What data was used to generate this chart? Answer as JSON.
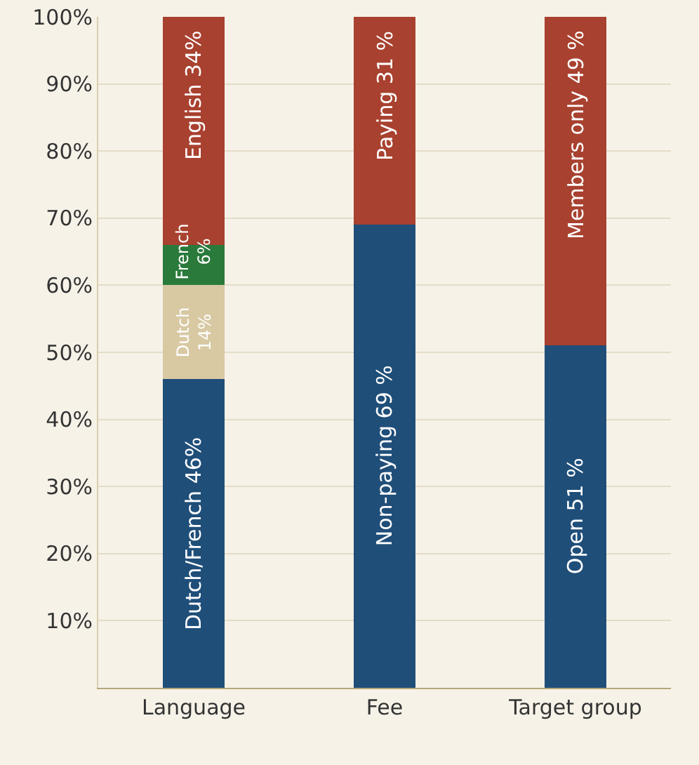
{
  "chart_data": {
    "type": "bar",
    "stacked": true,
    "categories": [
      "Language",
      "Fee",
      "Target group"
    ],
    "series": [
      {
        "color": "#1f4e79",
        "values": [
          46,
          69,
          51
        ],
        "value_labels": [
          "Dutch/French 46%",
          "Non-paying 69 %",
          "Open 51 %"
        ]
      },
      {
        "color": "#d8c9a3",
        "values": [
          14,
          null,
          null
        ],
        "value_labels": [
          "Dutch 14%",
          null,
          null
        ]
      },
      {
        "color": "#2a7a3b",
        "values": [
          6,
          null,
          null
        ],
        "value_labels": [
          "French 6%",
          null,
          null
        ]
      },
      {
        "color": "#a8412f",
        "values": [
          34,
          31,
          49
        ],
        "value_labels": [
          "English 34%",
          "Paying 31 %",
          "Members only 49 %"
        ]
      }
    ],
    "ylim": [
      0,
      100
    ],
    "yticks": [
      {
        "value": 10,
        "label": "10%"
      },
      {
        "value": 20,
        "label": "20%"
      },
      {
        "value": 30,
        "label": "30%"
      },
      {
        "value": 40,
        "label": "40%"
      },
      {
        "value": 50,
        "label": "50%"
      },
      {
        "value": 60,
        "label": "60%"
      },
      {
        "value": 70,
        "label": "70%"
      },
      {
        "value": 80,
        "label": "80%"
      },
      {
        "value": 90,
        "label": "90%"
      },
      {
        "value": 100,
        "label": "100%"
      }
    ],
    "grid": "y"
  }
}
